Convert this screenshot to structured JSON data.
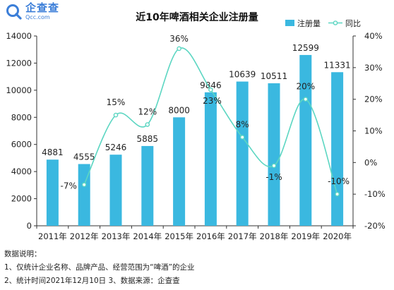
{
  "brand": {
    "name_cn": "企查查",
    "name_en": "Qcc.com",
    "color": "#3b7ed8"
  },
  "chart_data": {
    "type": "bar",
    "title": "近10年啤酒相关企业注册量",
    "categories": [
      "2011年",
      "2012年",
      "2013年",
      "2014年",
      "2015年",
      "2016年",
      "2017年",
      "2018年",
      "2019年",
      "2020年"
    ],
    "series": [
      {
        "name": "注册量",
        "type": "bar",
        "axis": "left",
        "color": "#3ab8e0",
        "values": [
          4881,
          4555,
          5246,
          5885,
          8000,
          9846,
          10639,
          10511,
          12599,
          11331
        ],
        "labels": [
          "4881",
          "4555",
          "5246",
          "5885",
          "8000",
          "9846",
          "10639",
          "10511",
          "12599",
          "11331"
        ]
      },
      {
        "name": "同比",
        "type": "line",
        "axis": "right",
        "color": "#5cd6c2",
        "values": [
          null,
          -7,
          15,
          12,
          36,
          23,
          8,
          -1,
          20,
          -10
        ],
        "labels": [
          "",
          "-7%",
          "15%",
          "12%",
          "36%",
          "23%",
          "8%",
          "-1%",
          "20%",
          "-10%"
        ]
      }
    ],
    "y_left": {
      "range": [
        0,
        14000
      ],
      "ticks": [
        "0",
        "2000",
        "4000",
        "6000",
        "8000",
        "10000",
        "12000",
        "14000"
      ]
    },
    "y_right": {
      "range": [
        -20,
        40
      ],
      "ticks": [
        "-20%",
        "-10%",
        "0%",
        "10%",
        "20%",
        "30%",
        "40%"
      ]
    },
    "legend": "top-right",
    "grid": false
  },
  "notes": {
    "heading": "数据说明：",
    "line1": "1、仅统计企业名称、品牌产品、经营范围为“啤酒”的企业",
    "line2": "2、统计时间2021年12月10日   3、数据来源：企查查"
  }
}
